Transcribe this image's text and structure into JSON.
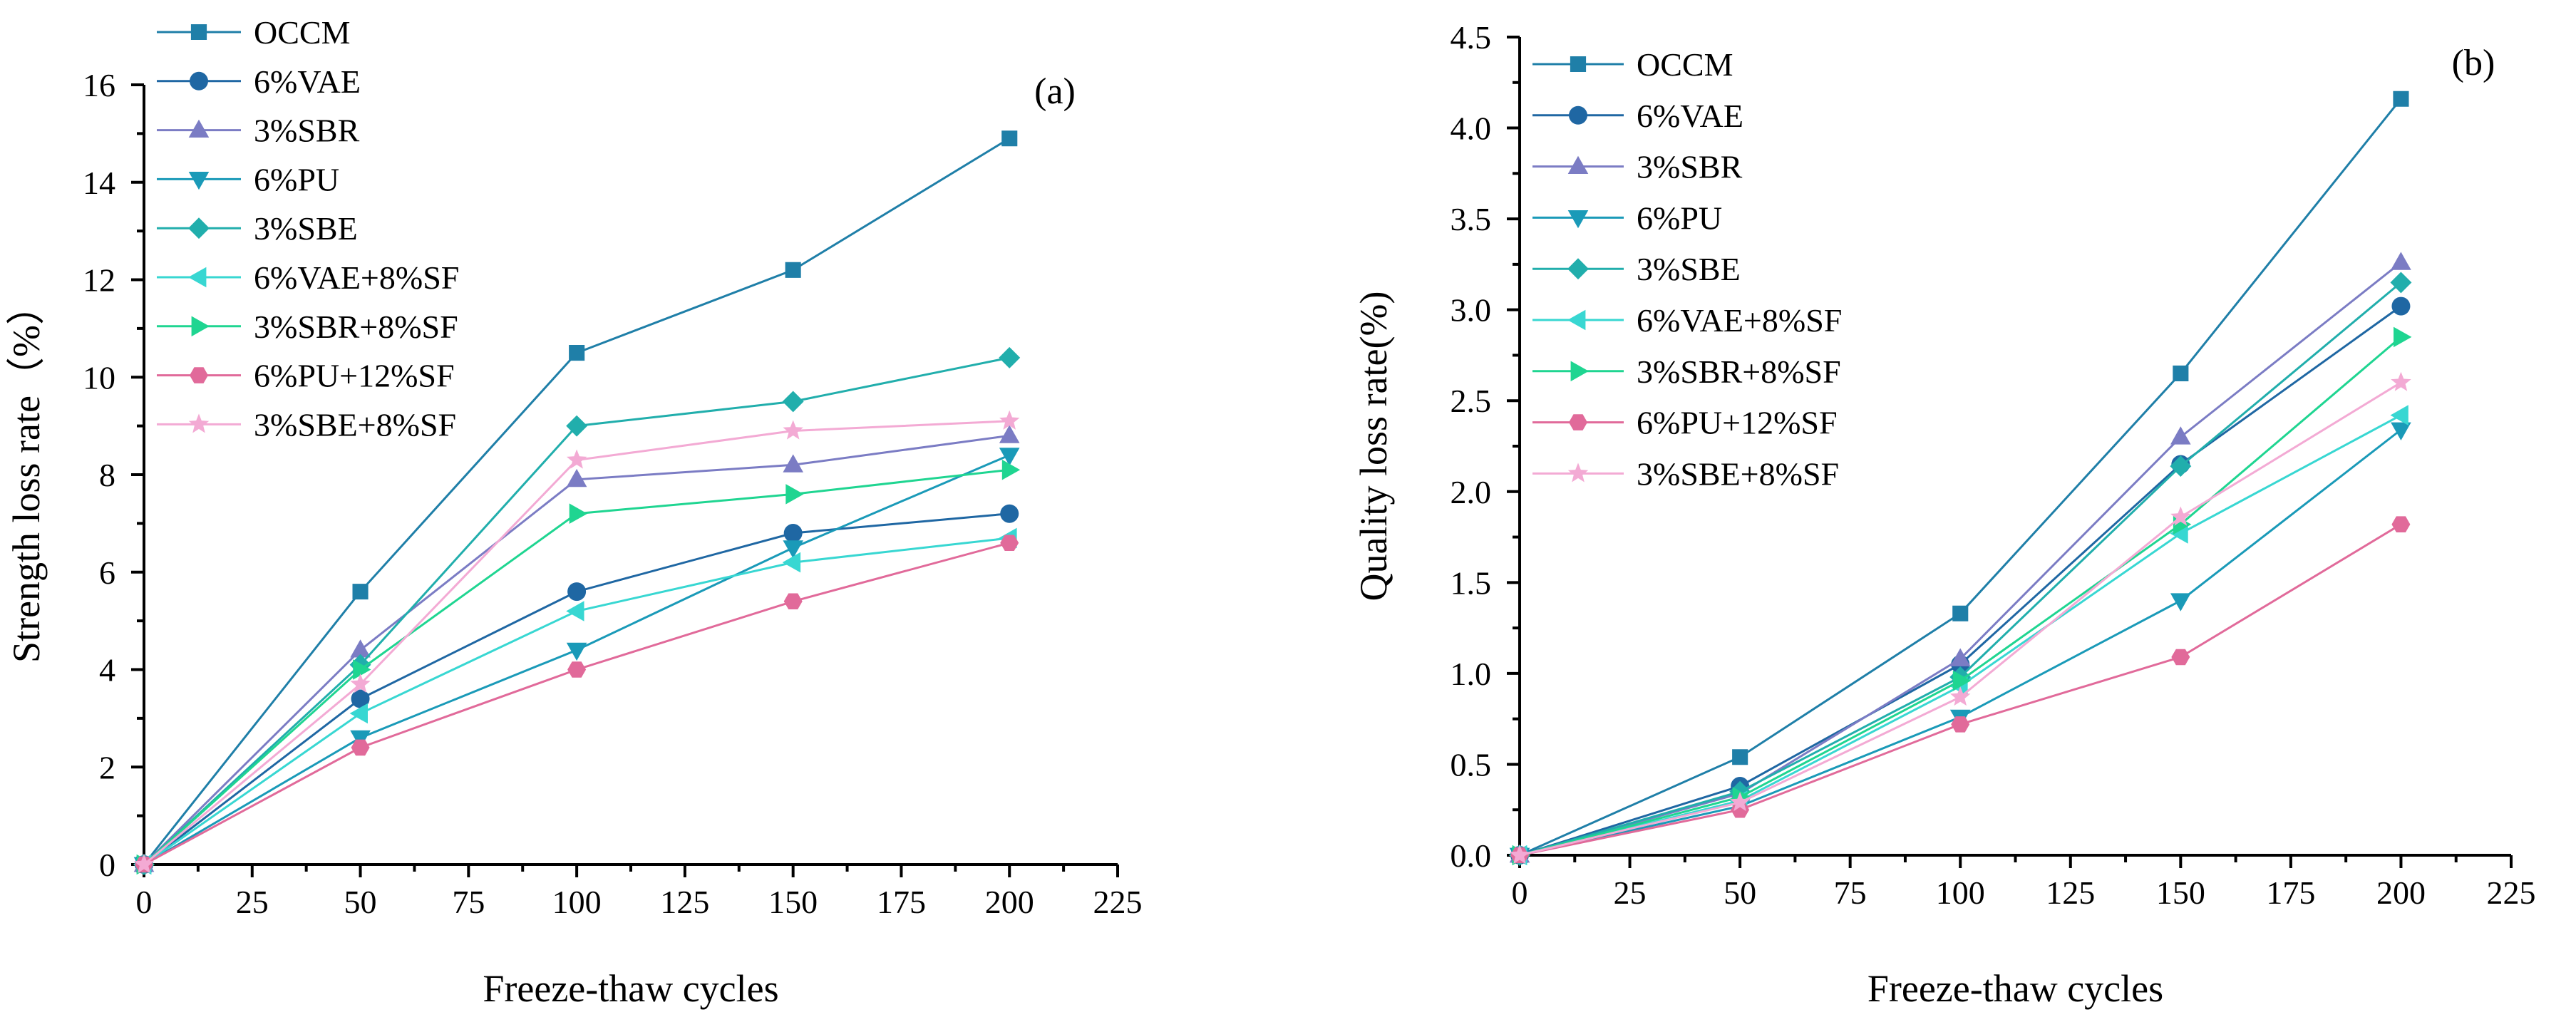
{
  "colors": {
    "OCCM": "#1f7fa8",
    "6%VAE": "#1f67a3",
    "3%SBR": "#7b7cc4",
    "6%PU": "#1a9ab8",
    "3%SBE": "#21aeac",
    "6%VAE+8%SF": "#38d7d2",
    "3%SBR+8%SF": "#1fd591",
    "6%PU+12%SF": "#e16a9a",
    "3%SBE+8%SF": "#f3aad4"
  },
  "chart_data": [
    {
      "type": "line",
      "panel_label": "(a)",
      "title": "",
      "xlabel": "Freeze-thaw cycles",
      "ylabel": "Strength loss rate（%）",
      "xlim": [
        0,
        225
      ],
      "ylim": [
        0,
        16
      ],
      "xticks": [
        0,
        25,
        50,
        75,
        100,
        125,
        150,
        175,
        200,
        225
      ],
      "xtick_labels": [
        "0",
        "25",
        "50",
        "75",
        "100",
        "125",
        "150",
        "175",
        "200",
        "225"
      ],
      "yticks": [
        0,
        2,
        4,
        6,
        8,
        10,
        12,
        14,
        16
      ],
      "ytick_labels": [
        "0",
        "2",
        "4",
        "6",
        "8",
        "10",
        "12",
        "14",
        "16"
      ],
      "x": [
        0,
        50,
        100,
        150,
        200
      ],
      "legend_position": "top-left",
      "series": [
        {
          "name": "OCCM",
          "marker": "square",
          "values": [
            0,
            5.6,
            10.5,
            12.2,
            14.9
          ]
        },
        {
          "name": "6%VAE",
          "marker": "circle",
          "values": [
            0,
            3.4,
            5.6,
            6.8,
            7.2
          ]
        },
        {
          "name": "3%SBR",
          "marker": "triangle-up",
          "values": [
            0,
            4.4,
            7.9,
            8.2,
            8.8
          ]
        },
        {
          "name": "6%PU",
          "marker": "triangle-down",
          "values": [
            0,
            2.6,
            4.4,
            6.5,
            8.4
          ]
        },
        {
          "name": "3%SBE",
          "marker": "diamond",
          "values": [
            0,
            4.1,
            9.0,
            9.5,
            10.4
          ]
        },
        {
          "name": "6%VAE+8%SF",
          "marker": "triangle-left",
          "values": [
            0,
            3.1,
            5.2,
            6.2,
            6.7
          ]
        },
        {
          "name": "3%SBR+8%SF",
          "marker": "triangle-right",
          "values": [
            0,
            4.0,
            7.2,
            7.6,
            8.1
          ]
        },
        {
          "name": "6%PU+12%SF",
          "marker": "hexagon",
          "values": [
            0,
            2.4,
            4.0,
            5.4,
            6.6
          ]
        },
        {
          "name": "3%SBE+8%SF",
          "marker": "star",
          "values": [
            0,
            3.7,
            8.3,
            8.9,
            9.1
          ]
        }
      ]
    },
    {
      "type": "line",
      "panel_label": "(b)",
      "title": "",
      "xlabel": "Freeze-thaw cycles",
      "ylabel": "Quality loss rate(%)",
      "xlim": [
        0,
        225
      ],
      "ylim": [
        0,
        4.5
      ],
      "xticks": [
        0,
        25,
        50,
        75,
        100,
        125,
        150,
        175,
        200,
        225
      ],
      "xtick_labels": [
        "0",
        "25",
        "50",
        "75",
        "100",
        "125",
        "150",
        "175",
        "200",
        "225"
      ],
      "yticks": [
        0,
        0.5,
        1,
        1.5,
        2,
        2.5,
        3,
        3.5,
        4,
        4.5
      ],
      "ytick_labels": [
        "0.0",
        "0.5",
        "1.0",
        "1.5",
        "2.0",
        "2.5",
        "3.0",
        "3.5",
        "4.0",
        "4.5"
      ],
      "x": [
        0,
        50,
        100,
        150,
        200
      ],
      "legend_position": "top-left",
      "series": [
        {
          "name": "OCCM",
          "marker": "square",
          "values": [
            0,
            0.54,
            1.33,
            2.65,
            4.16
          ]
        },
        {
          "name": "6%VAE",
          "marker": "circle",
          "values": [
            0,
            0.38,
            1.05,
            2.15,
            3.02
          ]
        },
        {
          "name": "3%SBR",
          "marker": "triangle-up",
          "values": [
            0,
            0.34,
            1.08,
            2.3,
            3.26
          ]
        },
        {
          "name": "6%PU",
          "marker": "triangle-down",
          "values": [
            0,
            0.27,
            0.76,
            1.4,
            2.34
          ]
        },
        {
          "name": "3%SBE",
          "marker": "diamond",
          "values": [
            0,
            0.35,
            0.98,
            2.14,
            3.15
          ]
        },
        {
          "name": "6%VAE+8%SF",
          "marker": "triangle-left",
          "values": [
            0,
            0.3,
            0.93,
            1.77,
            2.42
          ]
        },
        {
          "name": "3%SBR+8%SF",
          "marker": "triangle-right",
          "values": [
            0,
            0.32,
            0.96,
            1.82,
            2.85
          ]
        },
        {
          "name": "6%PU+12%SF",
          "marker": "hexagon",
          "values": [
            0,
            0.25,
            0.72,
            1.09,
            1.82
          ]
        },
        {
          "name": "3%SBE+8%SF",
          "marker": "star",
          "values": [
            0,
            0.29,
            0.87,
            1.86,
            2.6
          ]
        }
      ]
    }
  ]
}
